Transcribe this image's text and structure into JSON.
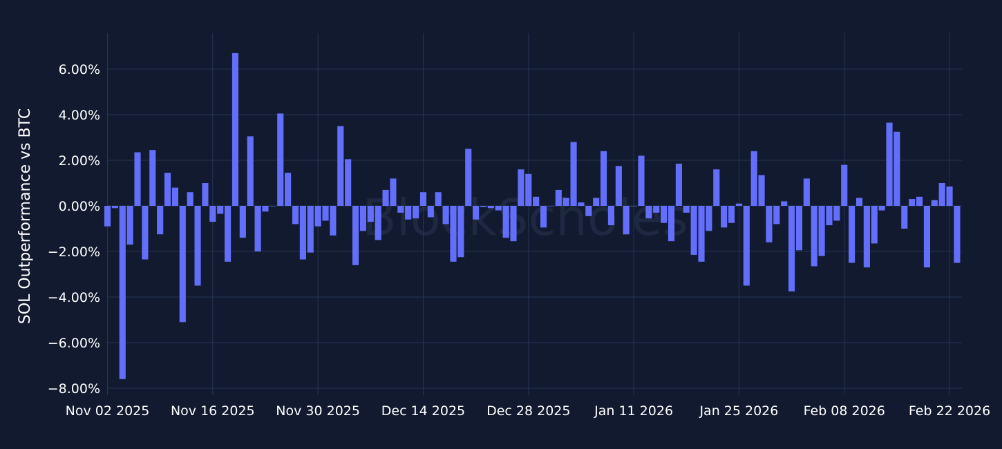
{
  "chart_data": {
    "type": "bar",
    "ylabel": "SOL Outperformance vs BTC",
    "watermark": "BlockScholes",
    "ylim": [
      -8.2,
      7.5
    ],
    "x_start": "2025-11-02",
    "x_ticks": [
      "Nov 02 2025",
      "Nov 16 2025",
      "Nov 30 2025",
      "Dec 14 2025",
      "Dec 28 2025",
      "Jan 11 2026",
      "Jan 25 2026",
      "Feb 08 2026",
      "Feb 22 2026"
    ],
    "y_ticks": [
      6,
      4,
      2,
      0,
      -2,
      -4,
      -6,
      -8
    ],
    "y_tick_labels": [
      "6.00%",
      "4.00%",
      "2.00%",
      "0.00%",
      "−2.00%",
      "−4.00%",
      "−6.00%",
      "−8.00%"
    ],
    "bar_color": "#636efa",
    "grid_color": "#283557",
    "background": "#111a2e",
    "grid": true,
    "series": [
      {
        "values": [
          -0.9,
          -0.1,
          -7.6,
          -1.7,
          2.35,
          -2.35,
          2.45,
          -1.25,
          1.45,
          0.8,
          -5.1,
          0.6,
          -3.5,
          1.0,
          -0.7,
          -0.35,
          -2.45,
          6.7,
          -1.4,
          3.05,
          -2.0,
          -0.25,
          0.0,
          4.05,
          1.45,
          -0.8,
          -2.35,
          -2.05,
          -0.9,
          -0.65,
          -1.3,
          3.5,
          2.05,
          -2.6,
          -1.1,
          -0.7,
          -1.5,
          0.7,
          1.2,
          -0.3,
          -0.6,
          -0.55,
          0.6,
          -0.5,
          0.6,
          -0.8,
          -2.45,
          -2.25,
          2.5,
          -0.6,
          -0.05,
          -0.1,
          -0.2,
          -1.4,
          -1.55,
          1.6,
          1.4,
          0.4,
          -0.95,
          0.0,
          0.7,
          0.35,
          2.8,
          0.15,
          -0.45,
          0.35,
          2.4,
          -0.85,
          1.75,
          -1.25,
          0.0,
          2.2,
          -0.55,
          -0.3,
          -0.75,
          -1.55,
          1.85,
          -0.3,
          -2.15,
          -2.45,
          -1.1,
          1.6,
          -0.95,
          -0.75,
          0.1,
          -3.5,
          2.4,
          1.35,
          -1.6,
          -0.8,
          0.2,
          -3.75,
          -1.95,
          1.2,
          -2.65,
          -2.2,
          -0.85,
          -0.65,
          1.8,
          -2.5,
          0.35,
          -2.7,
          -1.65,
          -0.2,
          3.65,
          3.25,
          -1.0,
          0.3,
          0.4,
          -2.7,
          0.25,
          1.0,
          0.85,
          -2.5
        ]
      }
    ]
  }
}
